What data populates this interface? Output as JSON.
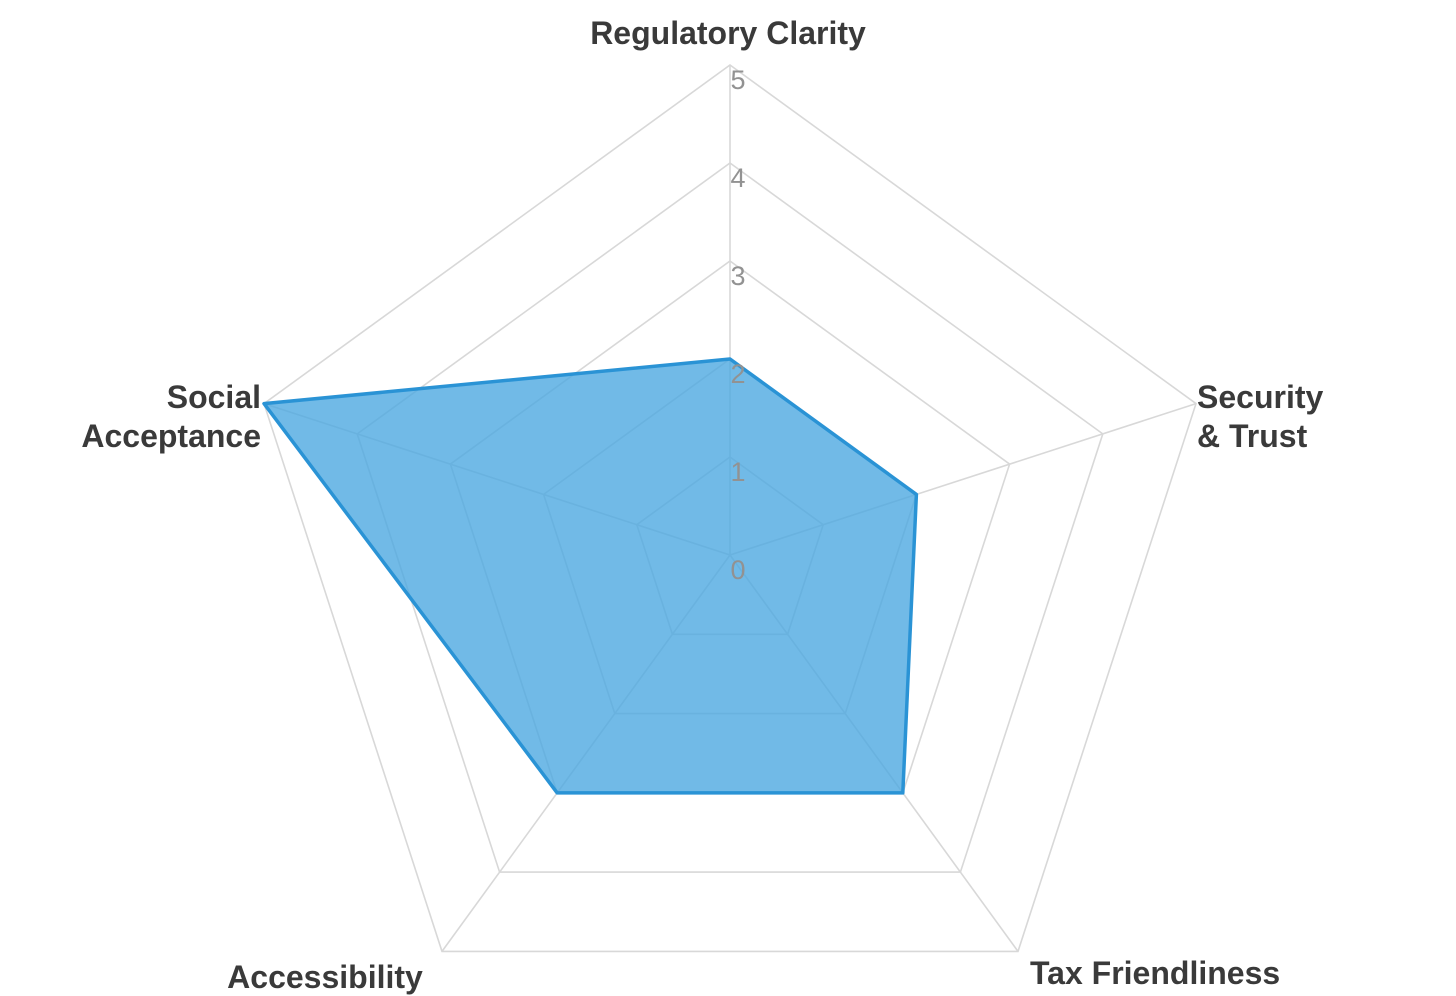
{
  "chart_data": {
    "type": "radar",
    "title": "",
    "categories": [
      "Regulatory Clarity",
      "Security & Trust",
      "Tax Friendliness",
      "Accessibility",
      "Social Acceptance"
    ],
    "values": [
      2,
      2,
      3,
      3,
      5
    ],
    "ticks": [
      0,
      1,
      2,
      3,
      4,
      5
    ],
    "rmin": 0,
    "rmax": 5,
    "grid": "on",
    "legend": "none",
    "category_label_lines": [
      [
        "Regulatory Clarity"
      ],
      [
        "Security",
        "& Trust"
      ],
      [
        "Tax Friendliness"
      ],
      [
        "Accessibility"
      ],
      [
        "Social",
        "Acceptance"
      ]
    ],
    "colors": {
      "fill": "#49a7e0",
      "fill_opacity": 0.78,
      "stroke": "#2a93d5",
      "grid_line": "#d8d8d8",
      "tick_label": "#929292",
      "category_label": "#3a3a3a"
    }
  }
}
